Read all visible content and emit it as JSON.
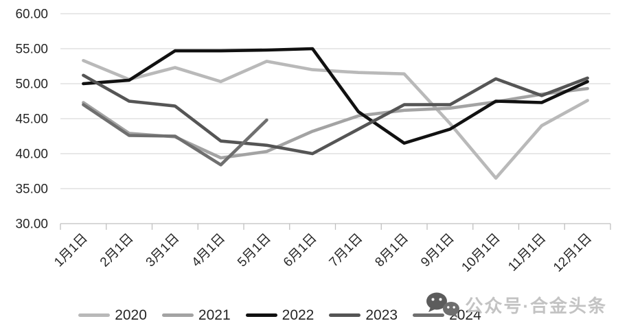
{
  "watermark": {
    "text": "公众号·合金头条",
    "icon": "wechat-icon"
  },
  "chart_data": {
    "type": "line",
    "title": "",
    "xlabel": "",
    "ylabel": "",
    "categories": [
      "1月1日",
      "2月1日",
      "3月1日",
      "4月1日",
      "5月1日",
      "6月1日",
      "7月1日",
      "8月1日",
      "9月1日",
      "10月1日",
      "11月1日",
      "12月1日"
    ],
    "ylim": [
      30,
      60
    ],
    "ytick_labels": [
      "60.00",
      "55.00",
      "50.00",
      "45.00",
      "40.00",
      "35.00",
      "30.00"
    ],
    "grid": true,
    "legend_position": "bottom",
    "series": [
      {
        "name": "2020",
        "color": "#b9b9b9",
        "values": [
          53.3,
          50.6,
          52.3,
          50.3,
          53.2,
          52.0,
          51.6,
          51.4,
          44.3,
          36.5,
          44.0,
          47.6
        ]
      },
      {
        "name": "2021",
        "color": "#a3a3a3",
        "values": [
          47.3,
          42.9,
          42.4,
          39.4,
          40.3,
          43.2,
          45.4,
          46.2,
          46.5,
          47.4,
          48.5,
          49.3
        ]
      },
      {
        "name": "2022",
        "color": "#111111",
        "values": [
          50.0,
          50.5,
          54.7,
          54.7,
          54.8,
          55.0,
          46.0,
          41.5,
          43.5,
          47.5,
          47.3,
          50.3
        ]
      },
      {
        "name": "2023",
        "color": "#555555",
        "values": [
          51.2,
          47.5,
          46.8,
          41.8,
          41.2,
          40.0,
          43.5,
          47.0,
          47.0,
          50.7,
          48.3,
          50.8
        ]
      },
      {
        "name": "2024",
        "color": "#6f6f6f",
        "values": [
          47.0,
          42.6,
          42.5,
          38.4,
          44.8,
          null,
          null,
          null,
          null,
          null,
          null,
          null
        ]
      }
    ]
  }
}
